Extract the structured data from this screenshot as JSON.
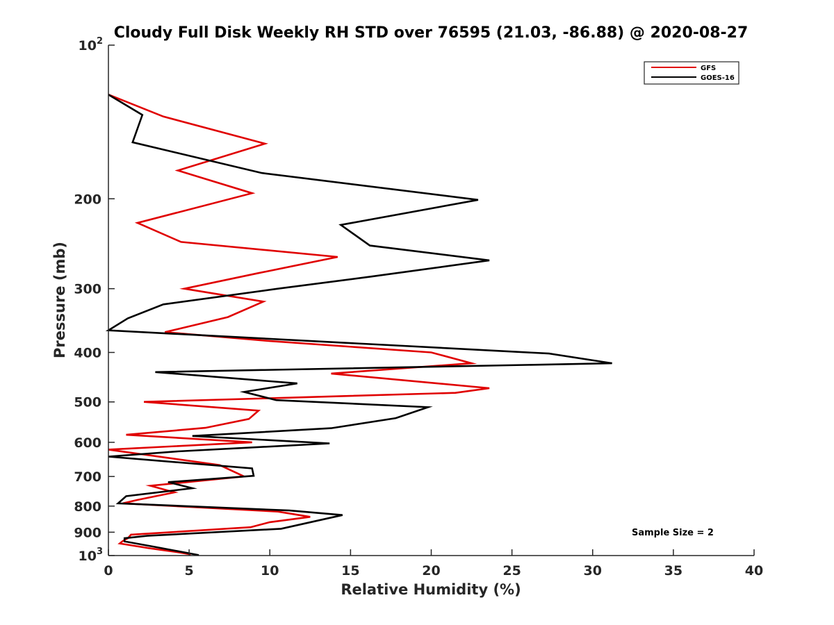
{
  "chart_data": {
    "type": "line",
    "title": "Cloudy Full Disk Weekly RH STD over 76595 (21.03, -86.88) @ 2020-08-27",
    "xlabel": "Relative Humidity (%)",
    "ylabel": "Pressure (mb)",
    "xlim": [
      0,
      40
    ],
    "ylim": [
      100,
      1000
    ],
    "yscale": "log",
    "y_reversed": true,
    "x_ticks": [
      "0",
      "5",
      "10",
      "15",
      "20",
      "25",
      "30",
      "35",
      "40"
    ],
    "y_ticks": [
      {
        "value": 100,
        "label": "10",
        "exp": "2"
      },
      {
        "value": 200,
        "label": "200"
      },
      {
        "value": 300,
        "label": "300"
      },
      {
        "value": 400,
        "label": "400"
      },
      {
        "value": 500,
        "label": "500"
      },
      {
        "value": 600,
        "label": "600"
      },
      {
        "value": 700,
        "label": "700"
      },
      {
        "value": 800,
        "label": "800"
      },
      {
        "value": 900,
        "label": "900"
      },
      {
        "value": 1000,
        "label": "10",
        "exp": "3"
      }
    ],
    "legend_position": "top-right",
    "annotation": "Sample Size = 2",
    "series": [
      {
        "name": "GFS",
        "color": "#e00000",
        "points": [
          [
            0,
            125
          ],
          [
            3.4,
            138
          ],
          [
            9.7,
            156
          ],
          [
            4.3,
            176
          ],
          [
            8.9,
            195
          ],
          [
            1.8,
            223
          ],
          [
            4.5,
            243
          ],
          [
            14.2,
            260
          ],
          [
            9.2,
            280
          ],
          [
            4.7,
            300
          ],
          [
            9.6,
            318
          ],
          [
            7.4,
            341
          ],
          [
            3.5,
            365
          ],
          [
            10.0,
            380
          ],
          [
            20.0,
            400
          ],
          [
            22.5,
            420
          ],
          [
            13.8,
            440
          ],
          [
            23.6,
            470
          ],
          [
            21.5,
            480
          ],
          [
            2.2,
            500
          ],
          [
            9.3,
            520
          ],
          [
            8.7,
            540
          ],
          [
            6.0,
            562
          ],
          [
            1.1,
            580
          ],
          [
            8.9,
            600
          ],
          [
            0,
            620
          ],
          [
            6.9,
            665
          ],
          [
            8.4,
            700
          ],
          [
            2.6,
            730
          ],
          [
            4.1,
            752
          ],
          [
            1.8,
            778
          ],
          [
            0.9,
            790
          ],
          [
            10.5,
            820
          ],
          [
            12.5,
            840
          ],
          [
            10.0,
            860
          ],
          [
            8.8,
            880
          ],
          [
            1.4,
            910
          ],
          [
            1.2,
            925
          ],
          [
            0.9,
            936
          ],
          [
            0.7,
            947
          ],
          [
            2.5,
            967
          ],
          [
            4.3,
            985
          ],
          [
            5.1,
            995
          ]
        ]
      },
      {
        "name": "GOES-16",
        "color": "#000000",
        "points": [
          [
            0,
            125
          ],
          [
            2.1,
            137
          ],
          [
            1.5,
            155
          ],
          [
            9.5,
            178
          ],
          [
            22.9,
            201
          ],
          [
            14.4,
            225
          ],
          [
            16.2,
            247
          ],
          [
            23.6,
            264
          ],
          [
            16.3,
            284
          ],
          [
            10.5,
            300
          ],
          [
            3.4,
            322
          ],
          [
            1.2,
            343
          ],
          [
            0,
            362
          ],
          [
            27.3,
            402
          ],
          [
            31.2,
            420
          ],
          [
            2.9,
            437
          ],
          [
            11.7,
            460
          ],
          [
            8.4,
            478
          ],
          [
            10.4,
            496
          ],
          [
            19.8,
            512
          ],
          [
            17.8,
            538
          ],
          [
            13.8,
            563
          ],
          [
            5.2,
            583
          ],
          [
            13.7,
            603
          ],
          [
            4.3,
            625
          ],
          [
            0,
            640
          ],
          [
            8.9,
            675
          ],
          [
            9.0,
            698
          ],
          [
            3.7,
            718
          ],
          [
            5.2,
            738
          ],
          [
            1.1,
            765
          ],
          [
            0.6,
            790
          ],
          [
            11.2,
            816
          ],
          [
            14.5,
            833
          ],
          [
            10.7,
            886
          ],
          [
            2.4,
            915
          ],
          [
            1.0,
            925
          ],
          [
            1.0,
            938
          ],
          [
            2.9,
            962
          ],
          [
            5.6,
            998
          ]
        ]
      }
    ]
  }
}
